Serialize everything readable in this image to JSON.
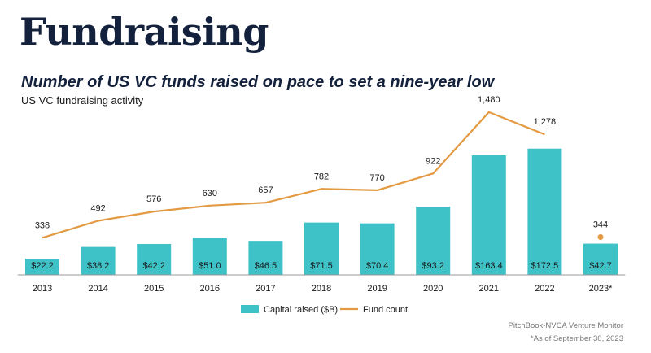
{
  "page": {
    "heading": "Fundraising",
    "subheading": "Number of US VC funds raised on pace to set a nine-year low",
    "source": "PitchBook-NVCA Venture Monitor",
    "footnote": "*As of September 30, 2023"
  },
  "colors": {
    "bar": "#3fc2c7",
    "line": "#e39a43",
    "heading": "#14213d"
  },
  "chart_data": {
    "type": "bar",
    "title": "US VC fundraising activity",
    "categories": [
      "2013",
      "2014",
      "2015",
      "2016",
      "2017",
      "2018",
      "2019",
      "2020",
      "2021",
      "2022",
      "2023*"
    ],
    "series": [
      {
        "name": "Capital raised ($B)",
        "type": "bar",
        "axis": "left",
        "values": [
          22.2,
          38.2,
          42.2,
          51.0,
          46.5,
          71.5,
          70.4,
          93.2,
          163.4,
          172.5,
          42.7
        ],
        "labels": [
          "$22.2",
          "$38.2",
          "$42.2",
          "$51.0",
          "$46.5",
          "$71.5",
          "$70.4",
          "$93.2",
          "$163.4",
          "$172.5",
          "$42.7"
        ]
      },
      {
        "name": "Fund count",
        "type": "line",
        "axis": "right",
        "values": [
          338,
          492,
          576,
          630,
          657,
          782,
          770,
          922,
          1480,
          1278,
          344
        ],
        "labels": [
          "338",
          "492",
          "576",
          "630",
          "657",
          "782",
          "770",
          "922",
          "1,480",
          "1,278",
          "344"
        ],
        "line_through_index": 9,
        "marker_indices": [
          10
        ]
      }
    ],
    "ylim_left": [
      0,
      200
    ],
    "ylim_right": [
      0,
      1800
    ],
    "grid": false,
    "legend_position": "bottom-center"
  }
}
